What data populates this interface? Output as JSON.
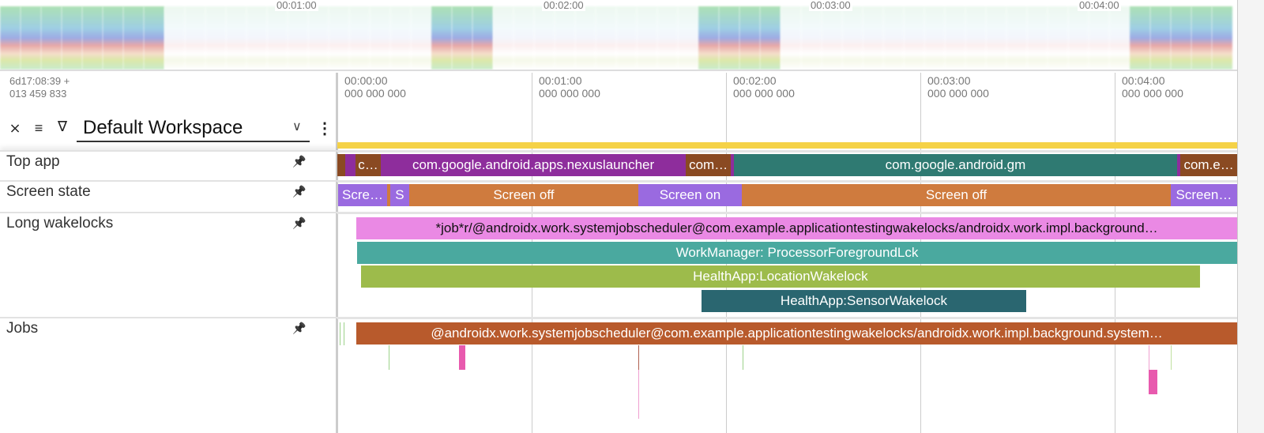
{
  "overview": {
    "labels": [
      "00:01:00",
      "00:02:00",
      "00:03:00",
      "00:04:00"
    ]
  },
  "header": {
    "timestamp_line1": "6d17:08:39  +",
    "timestamp_line2": "013 459 833",
    "workspace": "Default Workspace",
    "icons": [
      "collapse-icon",
      "sort-icon",
      "filter-icon",
      "chevron-down-icon",
      "more-vert-icon"
    ]
  },
  "time_axis": {
    "ticks": [
      {
        "time": "00:00:00",
        "ns": "000 000 000",
        "t": 0
      },
      {
        "time": "00:01:00",
        "ns": "000 000 000",
        "t": 60
      },
      {
        "time": "00:02:00",
        "ns": "000 000 000",
        "t": 120
      },
      {
        "time": "00:03:00",
        "ns": "000 000 000",
        "t": 180
      },
      {
        "time": "00:04:00",
        "ns": "000 000 000",
        "t": 240
      }
    ],
    "range_seconds": [
      0,
      277.8
    ]
  },
  "colors": {
    "purple": "#8e2d9c",
    "brown": "#8a4a22",
    "teal": "#2f7a72",
    "lavender": "#9a6ae0",
    "orange": "#cf7b3e",
    "pink": "#ea89e4",
    "teal2": "#4aa99f",
    "olive": "#9dbb4b",
    "darkteal": "#2a6670",
    "jobs": "#b85a2c",
    "highlight": "#f5d247"
  },
  "tracks": [
    {
      "name": "Top app",
      "slices": [
        {
          "s": 0,
          "e": 2.4,
          "c": "brown",
          "label": ""
        },
        {
          "s": 2.4,
          "e": 5.6,
          "c": "purple",
          "label": ""
        },
        {
          "s": 5.6,
          "e": 13.4,
          "c": "brown",
          "label": "c…"
        },
        {
          "s": 13.4,
          "e": 107.6,
          "c": "purple",
          "label": "com.google.android.apps.nexuslauncher"
        },
        {
          "s": 107.6,
          "e": 121.5,
          "c": "brown",
          "label": "com…"
        },
        {
          "s": 121.5,
          "e": 122.4,
          "c": "purple",
          "label": ""
        },
        {
          "s": 122.4,
          "e": 259.3,
          "c": "teal",
          "label": "com.google.android.gm"
        },
        {
          "s": 259.3,
          "e": 260.3,
          "c": "purple",
          "label": ""
        },
        {
          "s": 260.3,
          "e": 277.8,
          "c": "brown",
          "label": "com.e…"
        }
      ]
    },
    {
      "name": "Screen state",
      "slices": [
        {
          "s": 0.2,
          "e": 15.4,
          "c": "lavender",
          "label": "Scre…"
        },
        {
          "s": 15.4,
          "e": 16.3,
          "c": "orange",
          "label": ""
        },
        {
          "s": 16.3,
          "e": 22.2,
          "c": "lavender",
          "label": "S"
        },
        {
          "s": 22.2,
          "e": 92.9,
          "c": "orange",
          "label": "Screen off"
        },
        {
          "s": 92.9,
          "e": 124.9,
          "c": "lavender",
          "label": "Screen on"
        },
        {
          "s": 124.9,
          "e": 257.3,
          "c": "orange",
          "label": "Screen off"
        },
        {
          "s": 257.3,
          "e": 277.8,
          "c": "lavender",
          "label": "Screen…"
        }
      ]
    },
    {
      "name": "Long wakelocks",
      "slices": [
        {
          "s": 5.9,
          "e": 277.8,
          "c": "pink",
          "row": 0,
          "label": "*job*r/@androidx.work.systemjobscheduler@com.example.applicationtestingwakelocks/androidx.work.impl.background…"
        },
        {
          "s": 6.1,
          "e": 277.8,
          "c": "teal2",
          "row": 1,
          "label": "WorkManager: ProcessorForegroundLck"
        },
        {
          "s": 7.3,
          "e": 266.3,
          "c": "olive",
          "row": 2,
          "label": "HealthApp:LocationWakelock"
        },
        {
          "s": 112.4,
          "e": 212.7,
          "c": "darkteal",
          "row": 3,
          "label": "HealthApp:SensorWakelock"
        }
      ]
    },
    {
      "name": "Jobs",
      "slices": [
        {
          "s": 5.9,
          "e": 277.8,
          "c": "jobs",
          "row": 0,
          "label": "@androidx.work.systemjobscheduler@com.example.applicationtestingwakelocks/androidx.work.impl.background.system…"
        }
      ]
    }
  ]
}
